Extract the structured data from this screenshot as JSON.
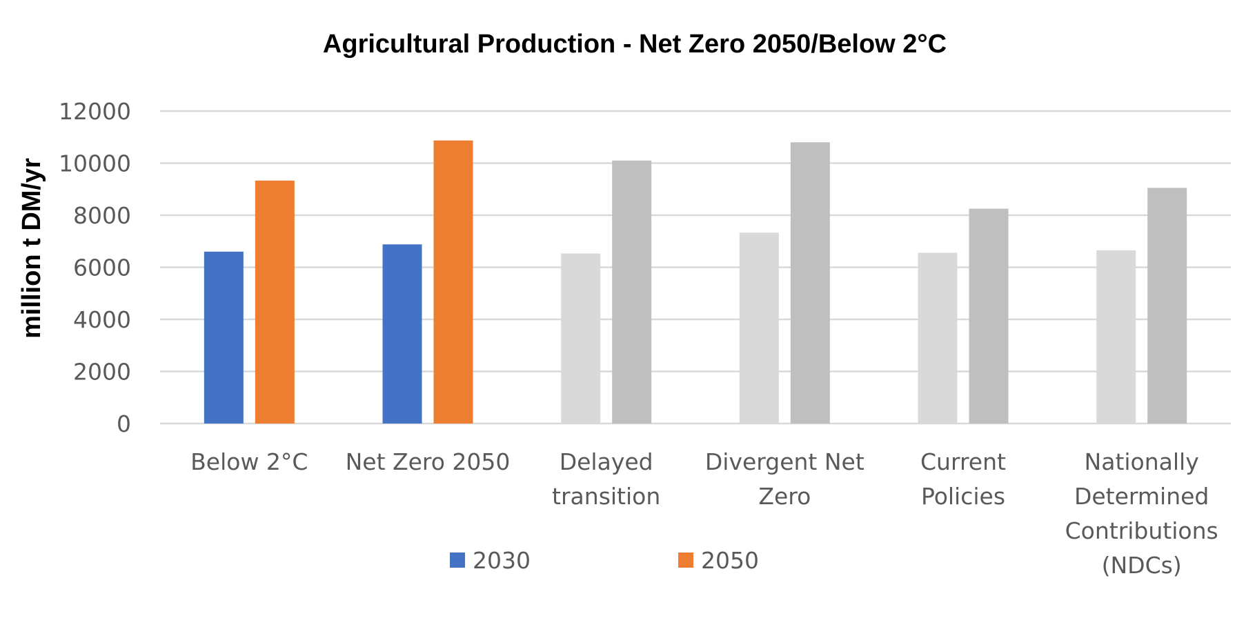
{
  "chart_data": {
    "type": "bar",
    "title": "Agricultural Production - Net Zero 2050/Below 2°C",
    "ylabel": "million t DM/yr",
    "xlabel": "",
    "ylim": [
      0,
      12000
    ],
    "yticks": [
      "0",
      "2000",
      "4000",
      "6000",
      "8000",
      "10000",
      "12000"
    ],
    "grid": true,
    "legend_position": "bottom",
    "categories": [
      [
        "Below 2°C"
      ],
      [
        "Net Zero 2050"
      ],
      [
        "Delayed",
        "transition"
      ],
      [
        "Divergent Net",
        "Zero"
      ],
      [
        "Current",
        "Policies"
      ],
      [
        "Nationally",
        "Determined",
        "Contributions",
        "(NDCs)"
      ]
    ],
    "series": [
      {
        "name": "2030",
        "color": "#4472C4",
        "values": [
          6600,
          6880,
          6530,
          7330,
          6560,
          6650
        ]
      },
      {
        "name": "2050",
        "color": "#ED7D31",
        "values": [
          9330,
          10870,
          10100,
          10800,
          8250,
          9050
        ]
      }
    ],
    "highlighted_categories": [
      0,
      1
    ],
    "muted_colors": {
      "2030": "#D9D9D9",
      "2050": "#BFBFBF"
    }
  }
}
